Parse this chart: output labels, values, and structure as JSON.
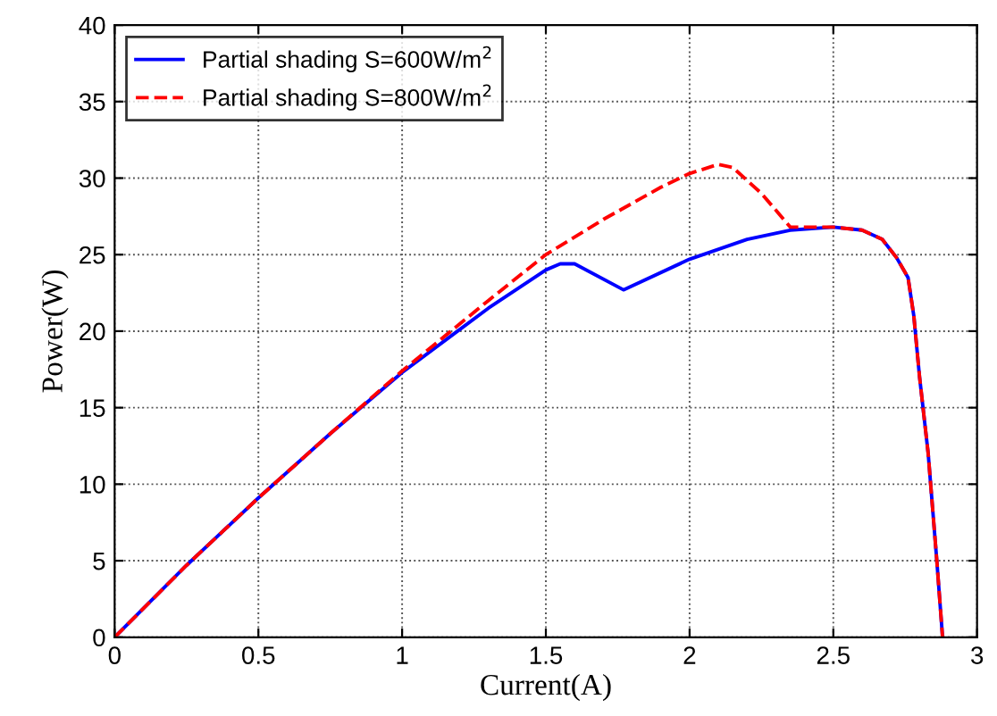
{
  "chart_data": {
    "type": "line",
    "xlabel": "Current(A)",
    "ylabel": "Power(W)",
    "xlim": [
      0,
      3
    ],
    "ylim": [
      0,
      40
    ],
    "xticks": [
      0,
      0.5,
      1,
      1.5,
      2,
      2.5,
      3
    ],
    "yticks": [
      0,
      5,
      10,
      15,
      20,
      25,
      30,
      35,
      40
    ],
    "grid": true,
    "legend": "top left",
    "series": [
      {
        "name": "Partial shading S=600W/m$^{2}$",
        "color": "#0000ff",
        "line_style": "solid",
        "x": [
          0,
          0.25,
          0.5,
          0.75,
          1,
          1.3,
          1.5,
          1.55,
          1.6,
          1.77,
          2,
          2.2,
          2.35,
          2.5,
          2.6,
          2.67,
          2.72,
          2.76,
          2.78,
          2.8,
          2.83,
          2.86,
          2.88
        ],
        "values": [
          0,
          4.7,
          9.1,
          13.3,
          17.3,
          21.5,
          24.0,
          24.4,
          24.4,
          22.7,
          24.7,
          26.0,
          26.6,
          26.8,
          26.6,
          26.0,
          24.8,
          23.5,
          21,
          17,
          12,
          5,
          0
        ]
      },
      {
        "name": "Partial shading S=800W/m$^{2}$",
        "color": "#ff0000",
        "line_style": "dashed",
        "x": [
          0,
          0.25,
          0.5,
          0.75,
          1,
          1.3,
          1.5,
          1.7,
          1.9,
          2.0,
          2.1,
          2.15,
          2.25,
          2.35,
          2.5,
          2.6,
          2.67,
          2.72,
          2.76,
          2.78,
          2.8,
          2.83,
          2.86,
          2.88
        ],
        "values": [
          0,
          4.7,
          9.1,
          13.3,
          17.4,
          22.0,
          25.0,
          27.3,
          29.4,
          30.3,
          30.9,
          30.7,
          29.0,
          26.8,
          26.8,
          26.6,
          26.0,
          24.8,
          23.5,
          21,
          17,
          12,
          5,
          0
        ]
      }
    ]
  }
}
